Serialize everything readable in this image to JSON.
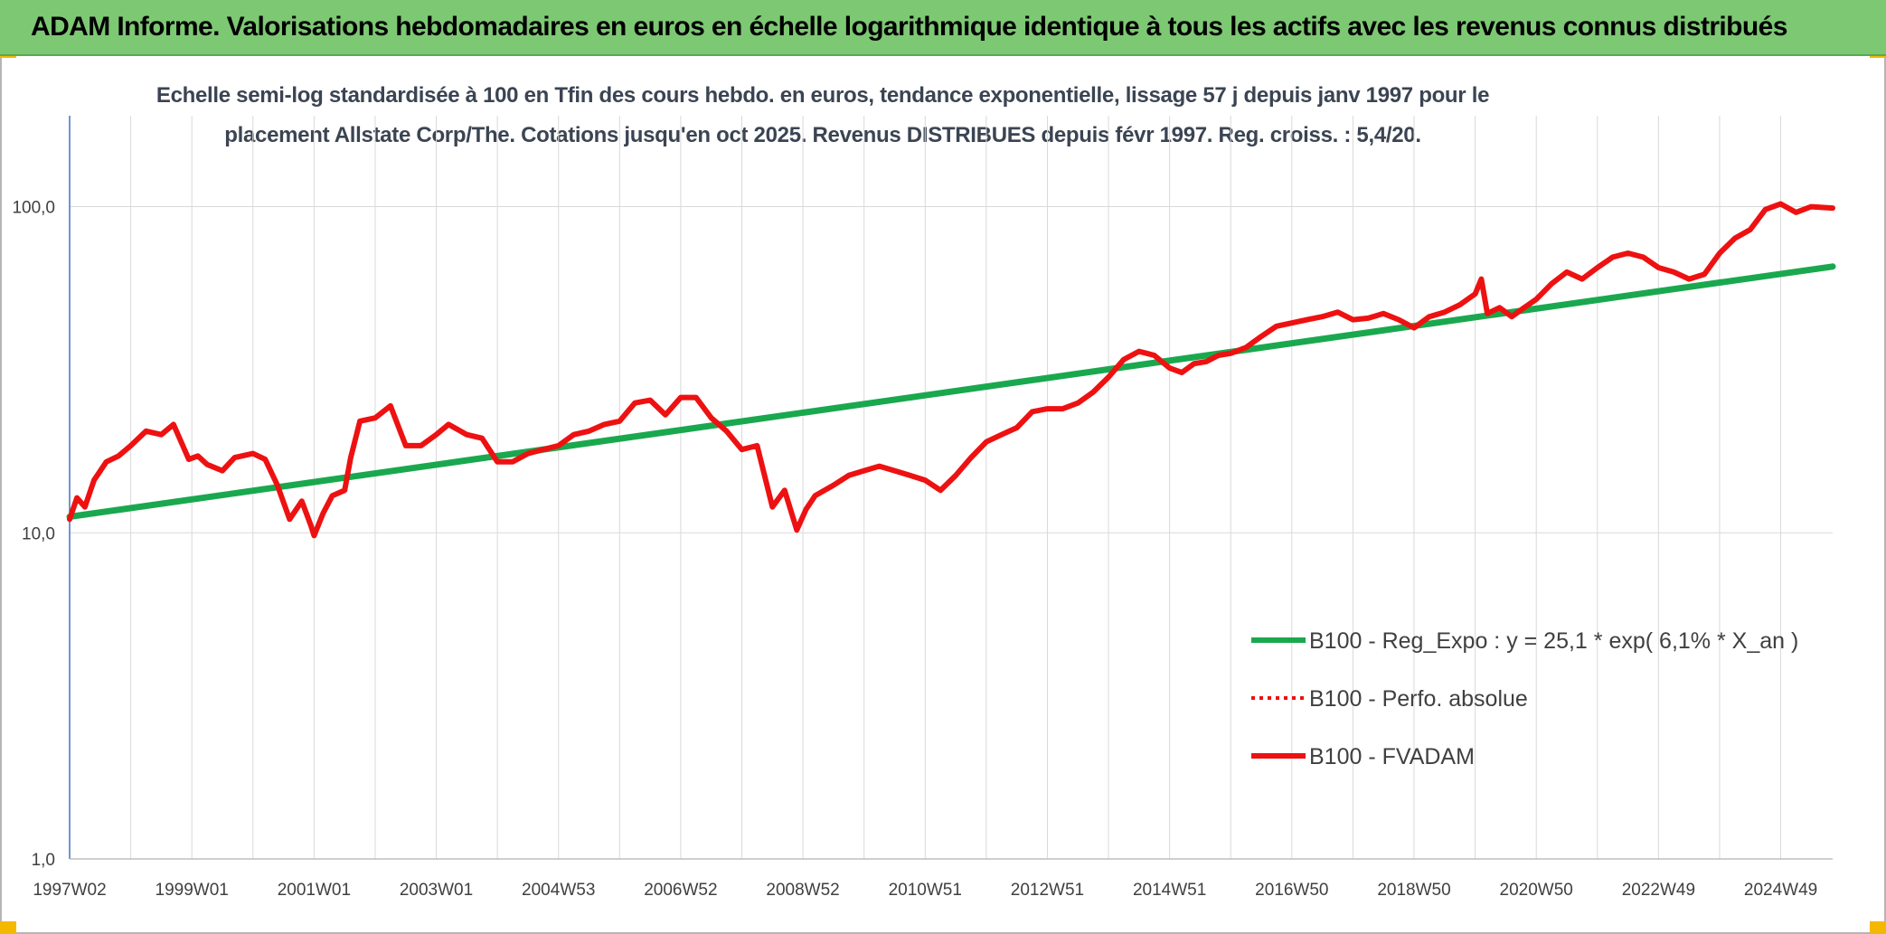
{
  "header": {
    "title": "ADAM Informe. Valorisations hebdomadaires en euros en échelle logarithmique identique à tous les actifs avec les revenus connus distribués"
  },
  "colors": {
    "header_bg": "#7dc873",
    "corner_marker": "#f5b800",
    "trend": "#1aa84e",
    "price": "#ee1111"
  },
  "chart_data": {
    "type": "line",
    "title_line1": "Echelle semi-log standardisée à 100 en Tfin des cours hebdo. en euros, tendance exponentielle, lissage 57 j depuis janv 1997 pour le",
    "title_line2": "placement Allstate Corp/The. Cotations jusqu'en oct 2025. Revenus DISTRIBUES depuis févr 1997. Reg. croiss. : 5,4/20.",
    "y_scale": "log",
    "ylim": [
      1,
      190
    ],
    "y_ticks": [
      {
        "value": 1,
        "label": "1,0"
      },
      {
        "value": 10,
        "label": "10,0"
      },
      {
        "value": 100,
        "label": "100,0"
      }
    ],
    "xlim": [
      1997.0,
      2025.85
    ],
    "x_ticks": [
      {
        "x": 1997.0,
        "label": "1997W02"
      },
      {
        "x": 1999.0,
        "label": "1999W01"
      },
      {
        "x": 2001.0,
        "label": "2001W01"
      },
      {
        "x": 2003.0,
        "label": "2003W01"
      },
      {
        "x": 2005.0,
        "label": "2004W53"
      },
      {
        "x": 2007.0,
        "label": "2006W52"
      },
      {
        "x": 2009.0,
        "label": "2008W52"
      },
      {
        "x": 2011.0,
        "label": "2010W51"
      },
      {
        "x": 2013.0,
        "label": "2012W51"
      },
      {
        "x": 2015.0,
        "label": "2014W51"
      },
      {
        "x": 2017.0,
        "label": "2016W50"
      },
      {
        "x": 2019.0,
        "label": "2018W50"
      },
      {
        "x": 2021.0,
        "label": "2020W50"
      },
      {
        "x": 2023.0,
        "label": "2022W49"
      },
      {
        "x": 2025.0,
        "label": "2024W49"
      }
    ],
    "grid": "vertical and horizontal",
    "legend_position": "bottom-right",
    "legend": [
      {
        "label": "B100 - Reg_Expo : y = 25,1 * exp( 6,1% *  X_an )",
        "style": "solid",
        "color": "#1aa84e"
      },
      {
        "label": "B100 - Perfo. absolue",
        "style": "dotted",
        "color": "#ee1111"
      },
      {
        "label": "B100 - FVADAM",
        "style": "solid",
        "color": "#ee1111"
      }
    ],
    "series": [
      {
        "name": "B100 - Reg_Expo : y = 25,1 * exp( 6,1% *  X_an )",
        "color": "#1aa84e",
        "x": [
          1997.0,
          2025.85
        ],
        "y": [
          11.2,
          65.5
        ]
      },
      {
        "name": "B100 - FVADAM",
        "color": "#ee1111",
        "x": [
          1997.0,
          1997.12,
          1997.25,
          1997.4,
          1997.6,
          1997.8,
          1998.0,
          1998.25,
          1998.5,
          1998.7,
          1998.95,
          1999.1,
          1999.25,
          1999.5,
          1999.7,
          2000.0,
          2000.2,
          2000.4,
          2000.6,
          2000.8,
          2000.95,
          2001.0,
          2001.15,
          2001.3,
          2001.5,
          2001.6,
          2001.75,
          2002.0,
          2002.25,
          2002.5,
          2002.75,
          2003.0,
          2003.2,
          2003.5,
          2003.75,
          2004.0,
          2004.25,
          2004.5,
          2004.75,
          2005.0,
          2005.25,
          2005.5,
          2005.75,
          2006.0,
          2006.25,
          2006.5,
          2006.75,
          2007.0,
          2007.25,
          2007.5,
          2007.75,
          2008.0,
          2008.25,
          2008.5,
          2008.7,
          2008.9,
          2009.05,
          2009.2,
          2009.5,
          2009.75,
          2010.0,
          2010.25,
          2010.5,
          2010.75,
          2011.0,
          2011.25,
          2011.5,
          2011.75,
          2012.0,
          2012.25,
          2012.5,
          2012.75,
          2013.0,
          2013.25,
          2013.5,
          2013.75,
          2014.0,
          2014.25,
          2014.5,
          2014.75,
          2015.0,
          2015.2,
          2015.4,
          2015.6,
          2015.8,
          2016.0,
          2016.25,
          2016.5,
          2016.75,
          2017.0,
          2017.25,
          2017.5,
          2017.75,
          2018.0,
          2018.25,
          2018.5,
          2018.75,
          2019.0,
          2019.25,
          2019.5,
          2019.75,
          2020.0,
          2020.1,
          2020.2,
          2020.4,
          2020.6,
          2020.8,
          2021.0,
          2021.25,
          2021.5,
          2021.75,
          2022.0,
          2022.25,
          2022.5,
          2022.75,
          2023.0,
          2023.25,
          2023.5,
          2023.75,
          2024.0,
          2024.25,
          2024.5,
          2024.75,
          2025.0,
          2025.25,
          2025.5,
          2025.85
        ],
        "y": [
          11.0,
          12.8,
          12.0,
          14.5,
          16.5,
          17.2,
          18.5,
          20.5,
          20.0,
          21.5,
          16.8,
          17.2,
          16.2,
          15.5,
          17.0,
          17.5,
          16.8,
          14.0,
          11.0,
          12.5,
          10.5,
          9.8,
          11.5,
          13.0,
          13.5,
          17.0,
          22.0,
          22.5,
          24.5,
          18.5,
          18.5,
          20.0,
          21.5,
          20.0,
          19.5,
          16.5,
          16.5,
          17.5,
          18.0,
          18.5,
          20.0,
          20.5,
          21.5,
          22.0,
          25.0,
          25.5,
          23.0,
          26.0,
          26.0,
          22.5,
          20.5,
          18.0,
          18.5,
          12.0,
          13.5,
          10.2,
          11.8,
          13.0,
          14.0,
          15.0,
          15.5,
          16.0,
          15.5,
          15.0,
          14.5,
          13.5,
          15.0,
          17.0,
          19.0,
          20.0,
          21.0,
          23.5,
          24.0,
          24.0,
          25.0,
          27.0,
          30.0,
          34.0,
          36.0,
          35.0,
          32.0,
          31.0,
          33.0,
          33.5,
          35.0,
          35.5,
          37.0,
          40.0,
          43.0,
          44.0,
          45.0,
          46.0,
          47.5,
          45.0,
          45.5,
          47.0,
          45.0,
          42.5,
          46.0,
          47.5,
          50.0,
          54.0,
          60.0,
          47.0,
          49.0,
          46.0,
          49.0,
          52.0,
          58.0,
          63.0,
          60.0,
          65.0,
          70.0,
          72.0,
          70.0,
          65.0,
          63.0,
          60.0,
          62.0,
          72.0,
          80.0,
          85.0,
          98.0,
          102.0,
          96.0,
          100.0,
          99.0
        ]
      }
    ]
  }
}
